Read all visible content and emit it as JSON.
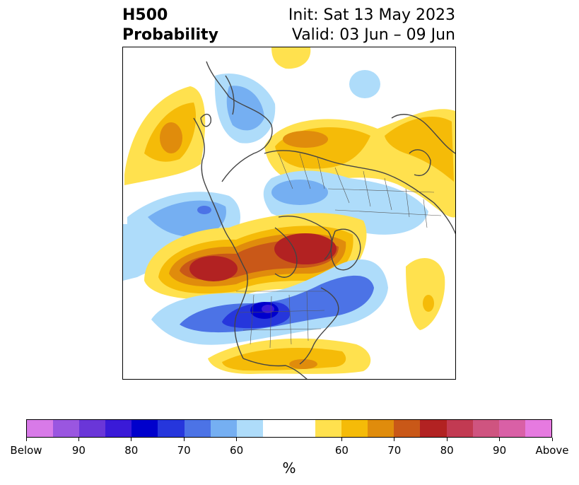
{
  "title": {
    "left_line1": "H500",
    "left_line2": "Probability",
    "right_line1": "Init: Sat 13 May 2023",
    "right_line2": "Valid: 03 Jun – 09 Jun"
  },
  "colorbar": {
    "colors": [
      "#d87ae8",
      "#9a56e0",
      "#6a36d8",
      "#3a1ad8",
      "#0000cc",
      "#2636dc",
      "#4c73e6",
      "#75aff2",
      "#aedcfa",
      "#ffffff",
      "#ffffff",
      "#ffe14e",
      "#f5bb08",
      "#e08c0c",
      "#c95818",
      "#b22222",
      "#c23a52",
      "#cf5480",
      "#d960a6",
      "#e67ae0"
    ],
    "tick_labels": [
      "Below",
      "90",
      "80",
      "70",
      "60",
      "60",
      "70",
      "80",
      "90",
      "Above"
    ],
    "unit": "%"
  },
  "map": {
    "projection": "north-polar-stereographic",
    "variable": "500 hPa height anomaly probability"
  }
}
